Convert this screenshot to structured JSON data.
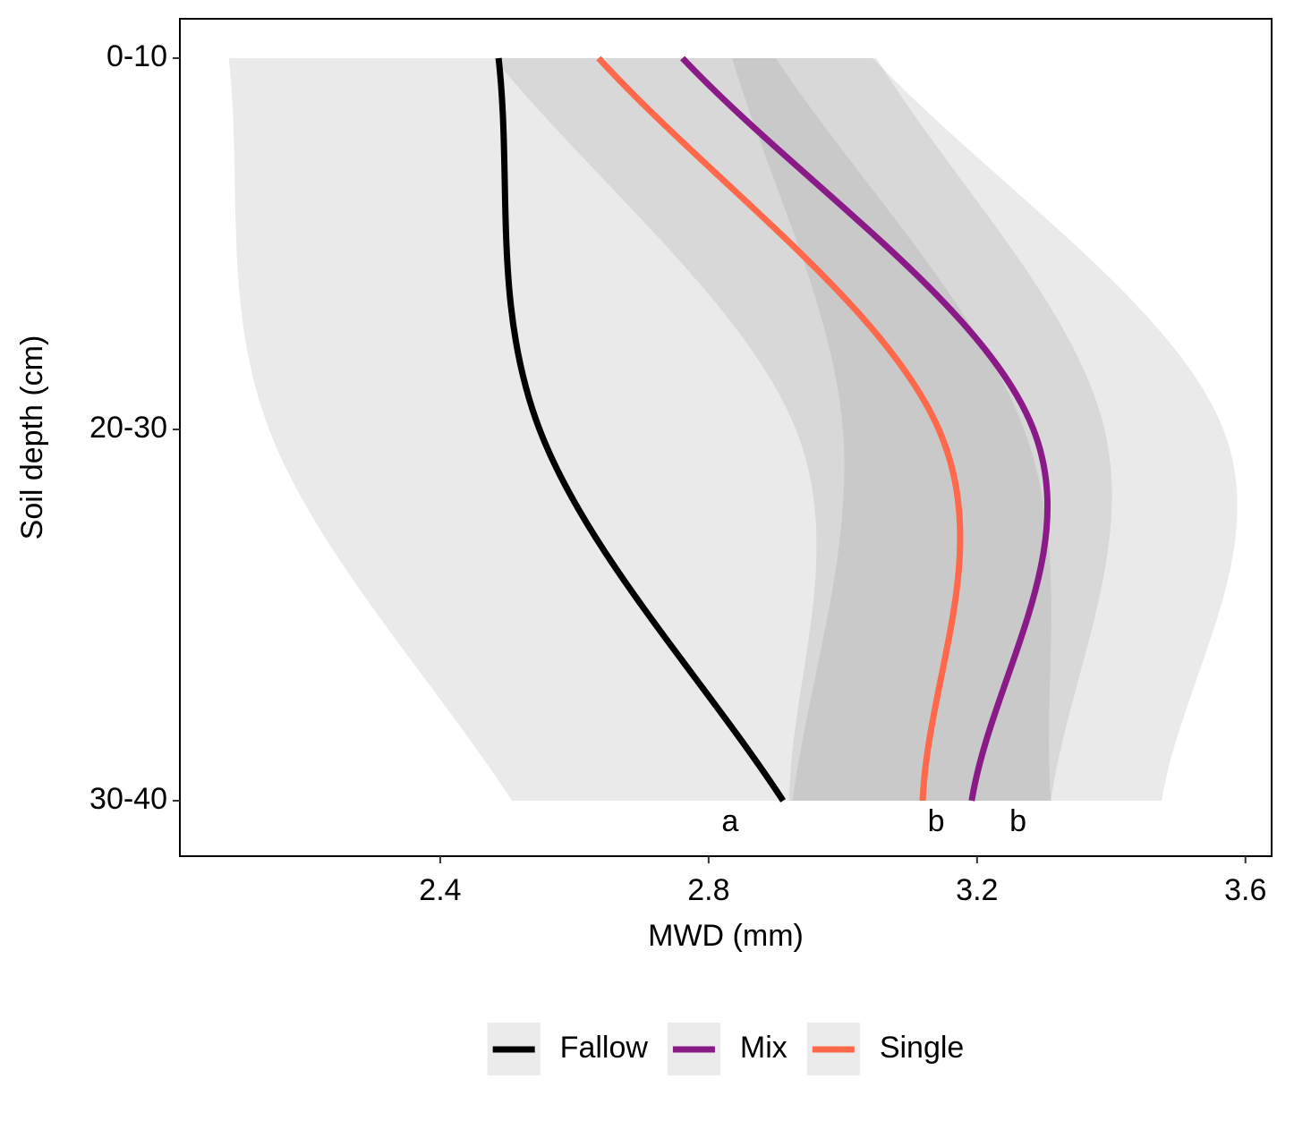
{
  "chart_data": {
    "type": "line",
    "x_label": "MWD (mm)",
    "y_label": "Soil depth (cm)",
    "categories": [
      "0-10",
      "20-30",
      "30-40"
    ],
    "xlim": [
      2.012,
      3.639
    ],
    "xticks": [
      2.4,
      2.8,
      3.2,
      3.6
    ],
    "series": [
      {
        "name": "Fallow",
        "color": "#000000",
        "values": [
          2.487,
          2.548,
          2.911
        ],
        "lower": [
          2.085,
          2.145,
          2.507
        ],
        "upper": [
          3.045,
          3.567,
          3.475
        ]
      },
      {
        "name": "Mix",
        "color": "#8B1A89",
        "values": [
          2.761,
          3.284,
          3.192
        ],
        "lower": [
          2.835,
          3.0,
          2.925
        ],
        "upper": [
          3.05,
          3.39,
          3.31
        ]
      },
      {
        "name": "Single",
        "color": "#FF684A",
        "values": [
          2.636,
          3.143,
          3.119
        ],
        "lower": [
          2.48,
          2.93,
          2.92
        ],
        "upper": [
          2.9,
          3.27,
          3.31
        ]
      }
    ],
    "annotations": [
      {
        "text": "a",
        "x": 2.832
      },
      {
        "text": "b",
        "x": 3.139
      },
      {
        "text": "b",
        "x": 3.261
      }
    ],
    "legend": "bottom"
  }
}
